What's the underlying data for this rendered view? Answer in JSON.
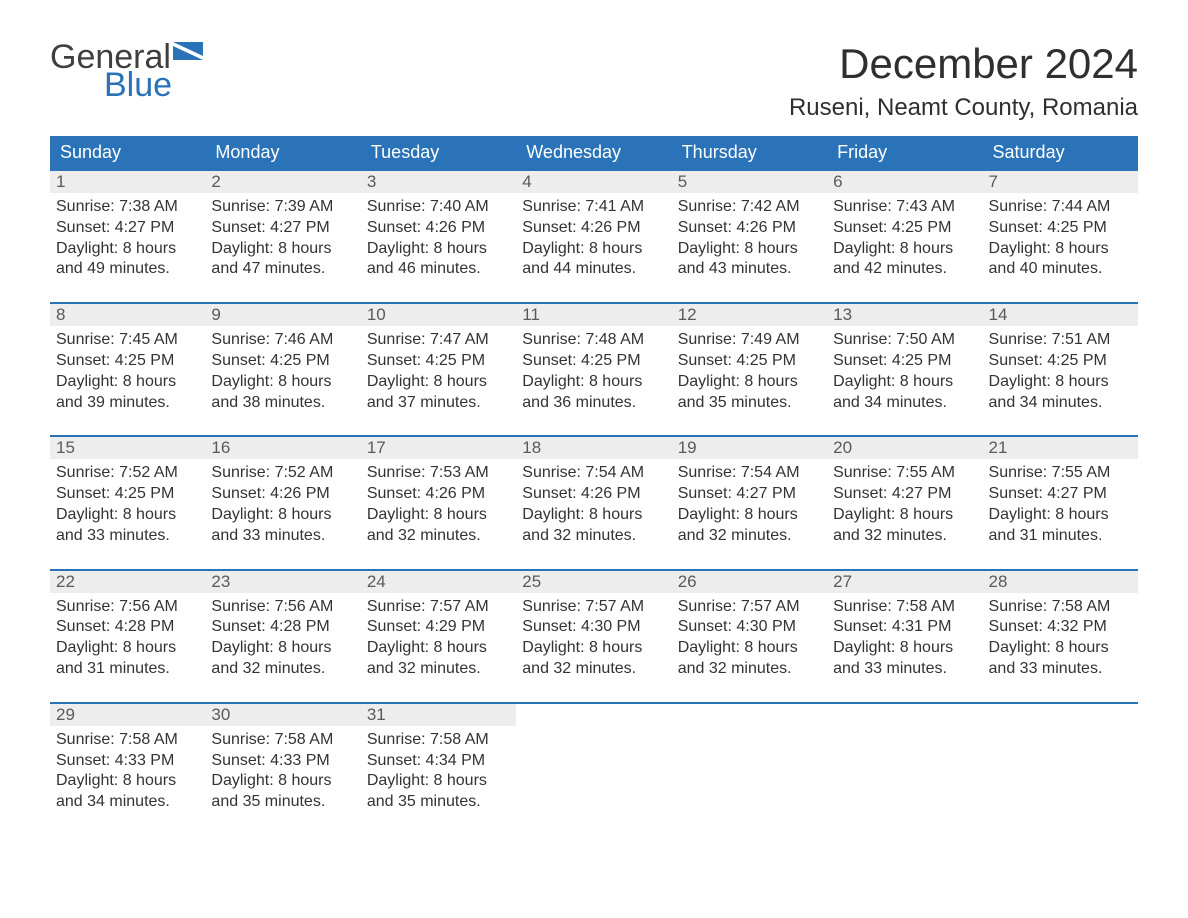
{
  "logo": {
    "text1": "General",
    "text2": "Blue",
    "flag_color": "#2b73b8",
    "text1_color": "#3f3f3f",
    "text2_color": "#2b73b8"
  },
  "title": "December 2024",
  "location": "Ruseni, Neamt County, Romania",
  "colors": {
    "header_bg": "#2b73b8",
    "header_text": "#ffffff",
    "daynum_bg": "#ededed",
    "daynum_text": "#5a5a5a",
    "body_text": "#333333",
    "week_border": "#2b73b8",
    "page_bg": "#ffffff"
  },
  "day_headers": [
    "Sunday",
    "Monday",
    "Tuesday",
    "Wednesday",
    "Thursday",
    "Friday",
    "Saturday"
  ],
  "weeks": [
    [
      {
        "day": "1",
        "sunrise": "Sunrise: 7:38 AM",
        "sunset": "Sunset: 4:27 PM",
        "dl1": "Daylight: 8 hours",
        "dl2": "and 49 minutes."
      },
      {
        "day": "2",
        "sunrise": "Sunrise: 7:39 AM",
        "sunset": "Sunset: 4:27 PM",
        "dl1": "Daylight: 8 hours",
        "dl2": "and 47 minutes."
      },
      {
        "day": "3",
        "sunrise": "Sunrise: 7:40 AM",
        "sunset": "Sunset: 4:26 PM",
        "dl1": "Daylight: 8 hours",
        "dl2": "and 46 minutes."
      },
      {
        "day": "4",
        "sunrise": "Sunrise: 7:41 AM",
        "sunset": "Sunset: 4:26 PM",
        "dl1": "Daylight: 8 hours",
        "dl2": "and 44 minutes."
      },
      {
        "day": "5",
        "sunrise": "Sunrise: 7:42 AM",
        "sunset": "Sunset: 4:26 PM",
        "dl1": "Daylight: 8 hours",
        "dl2": "and 43 minutes."
      },
      {
        "day": "6",
        "sunrise": "Sunrise: 7:43 AM",
        "sunset": "Sunset: 4:25 PM",
        "dl1": "Daylight: 8 hours",
        "dl2": "and 42 minutes."
      },
      {
        "day": "7",
        "sunrise": "Sunrise: 7:44 AM",
        "sunset": "Sunset: 4:25 PM",
        "dl1": "Daylight: 8 hours",
        "dl2": "and 40 minutes."
      }
    ],
    [
      {
        "day": "8",
        "sunrise": "Sunrise: 7:45 AM",
        "sunset": "Sunset: 4:25 PM",
        "dl1": "Daylight: 8 hours",
        "dl2": "and 39 minutes."
      },
      {
        "day": "9",
        "sunrise": "Sunrise: 7:46 AM",
        "sunset": "Sunset: 4:25 PM",
        "dl1": "Daylight: 8 hours",
        "dl2": "and 38 minutes."
      },
      {
        "day": "10",
        "sunrise": "Sunrise: 7:47 AM",
        "sunset": "Sunset: 4:25 PM",
        "dl1": "Daylight: 8 hours",
        "dl2": "and 37 minutes."
      },
      {
        "day": "11",
        "sunrise": "Sunrise: 7:48 AM",
        "sunset": "Sunset: 4:25 PM",
        "dl1": "Daylight: 8 hours",
        "dl2": "and 36 minutes."
      },
      {
        "day": "12",
        "sunrise": "Sunrise: 7:49 AM",
        "sunset": "Sunset: 4:25 PM",
        "dl1": "Daylight: 8 hours",
        "dl2": "and 35 minutes."
      },
      {
        "day": "13",
        "sunrise": "Sunrise: 7:50 AM",
        "sunset": "Sunset: 4:25 PM",
        "dl1": "Daylight: 8 hours",
        "dl2": "and 34 minutes."
      },
      {
        "day": "14",
        "sunrise": "Sunrise: 7:51 AM",
        "sunset": "Sunset: 4:25 PM",
        "dl1": "Daylight: 8 hours",
        "dl2": "and 34 minutes."
      }
    ],
    [
      {
        "day": "15",
        "sunrise": "Sunrise: 7:52 AM",
        "sunset": "Sunset: 4:25 PM",
        "dl1": "Daylight: 8 hours",
        "dl2": "and 33 minutes."
      },
      {
        "day": "16",
        "sunrise": "Sunrise: 7:52 AM",
        "sunset": "Sunset: 4:26 PM",
        "dl1": "Daylight: 8 hours",
        "dl2": "and 33 minutes."
      },
      {
        "day": "17",
        "sunrise": "Sunrise: 7:53 AM",
        "sunset": "Sunset: 4:26 PM",
        "dl1": "Daylight: 8 hours",
        "dl2": "and 32 minutes."
      },
      {
        "day": "18",
        "sunrise": "Sunrise: 7:54 AM",
        "sunset": "Sunset: 4:26 PM",
        "dl1": "Daylight: 8 hours",
        "dl2": "and 32 minutes."
      },
      {
        "day": "19",
        "sunrise": "Sunrise: 7:54 AM",
        "sunset": "Sunset: 4:27 PM",
        "dl1": "Daylight: 8 hours",
        "dl2": "and 32 minutes."
      },
      {
        "day": "20",
        "sunrise": "Sunrise: 7:55 AM",
        "sunset": "Sunset: 4:27 PM",
        "dl1": "Daylight: 8 hours",
        "dl2": "and 32 minutes."
      },
      {
        "day": "21",
        "sunrise": "Sunrise: 7:55 AM",
        "sunset": "Sunset: 4:27 PM",
        "dl1": "Daylight: 8 hours",
        "dl2": "and 31 minutes."
      }
    ],
    [
      {
        "day": "22",
        "sunrise": "Sunrise: 7:56 AM",
        "sunset": "Sunset: 4:28 PM",
        "dl1": "Daylight: 8 hours",
        "dl2": "and 31 minutes."
      },
      {
        "day": "23",
        "sunrise": "Sunrise: 7:56 AM",
        "sunset": "Sunset: 4:28 PM",
        "dl1": "Daylight: 8 hours",
        "dl2": "and 32 minutes."
      },
      {
        "day": "24",
        "sunrise": "Sunrise: 7:57 AM",
        "sunset": "Sunset: 4:29 PM",
        "dl1": "Daylight: 8 hours",
        "dl2": "and 32 minutes."
      },
      {
        "day": "25",
        "sunrise": "Sunrise: 7:57 AM",
        "sunset": "Sunset: 4:30 PM",
        "dl1": "Daylight: 8 hours",
        "dl2": "and 32 minutes."
      },
      {
        "day": "26",
        "sunrise": "Sunrise: 7:57 AM",
        "sunset": "Sunset: 4:30 PM",
        "dl1": "Daylight: 8 hours",
        "dl2": "and 32 minutes."
      },
      {
        "day": "27",
        "sunrise": "Sunrise: 7:58 AM",
        "sunset": "Sunset: 4:31 PM",
        "dl1": "Daylight: 8 hours",
        "dl2": "and 33 minutes."
      },
      {
        "day": "28",
        "sunrise": "Sunrise: 7:58 AM",
        "sunset": "Sunset: 4:32 PM",
        "dl1": "Daylight: 8 hours",
        "dl2": "and 33 minutes."
      }
    ],
    [
      {
        "day": "29",
        "sunrise": "Sunrise: 7:58 AM",
        "sunset": "Sunset: 4:33 PM",
        "dl1": "Daylight: 8 hours",
        "dl2": "and 34 minutes."
      },
      {
        "day": "30",
        "sunrise": "Sunrise: 7:58 AM",
        "sunset": "Sunset: 4:33 PM",
        "dl1": "Daylight: 8 hours",
        "dl2": "and 35 minutes."
      },
      {
        "day": "31",
        "sunrise": "Sunrise: 7:58 AM",
        "sunset": "Sunset: 4:34 PM",
        "dl1": "Daylight: 8 hours",
        "dl2": "and 35 minutes."
      },
      null,
      null,
      null,
      null
    ]
  ]
}
